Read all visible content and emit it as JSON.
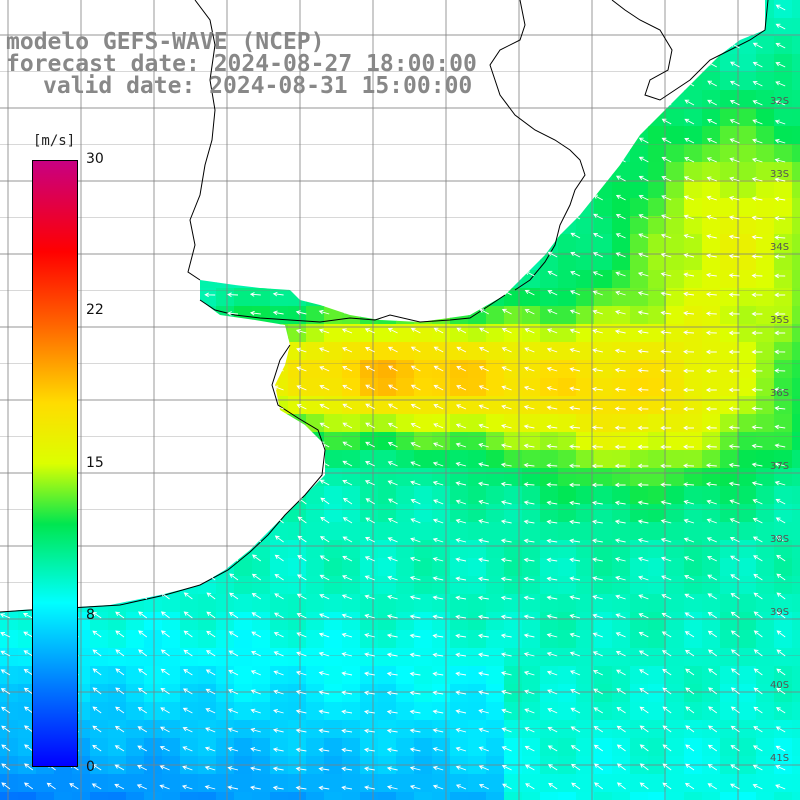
{
  "title": {
    "model": "modelo GEFS-WAVE (NCEP)",
    "forecast": "forecast date: 2024-08-27 18:00:00",
    "valid": "valid date: 2024-08-31 15:00:00"
  },
  "colorbar": {
    "unit": "[m/s]",
    "ticks": [
      "30",
      "22",
      "15",
      "8",
      "0"
    ],
    "range": [
      0,
      30
    ]
  },
  "grid": {
    "lat_labels": [
      "32S",
      "33S",
      "34S",
      "35S",
      "36S",
      "37S",
      "38S",
      "39S",
      "40S",
      "41S"
    ]
  },
  "colors": {
    "grid": "#808080",
    "coast": "#000000",
    "arrow": "#ffffff",
    "land": "#ffffff"
  }
}
